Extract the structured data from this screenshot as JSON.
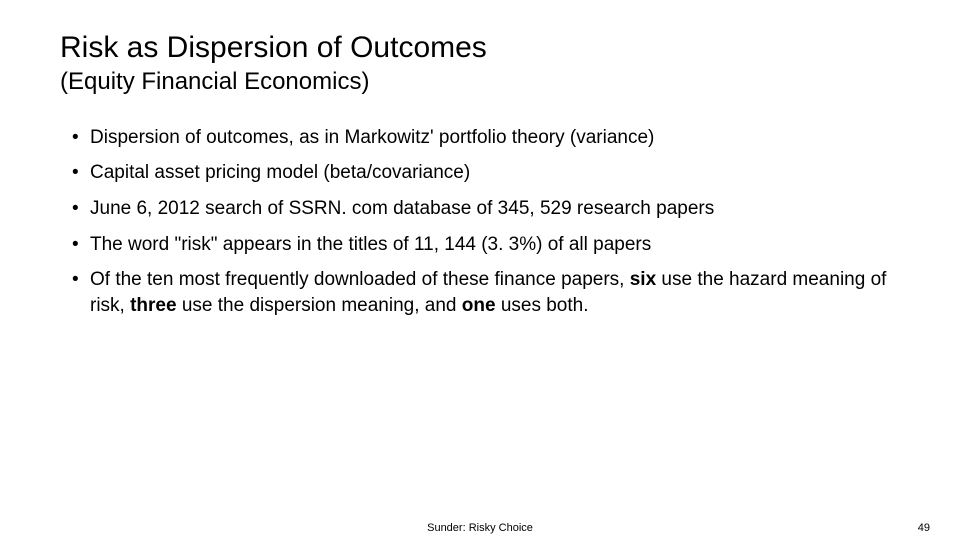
{
  "slide": {
    "title": "Risk as Dispersion of Outcomes",
    "subtitle": "(Equity Financial Economics)",
    "bullets": [
      {
        "html": "Dispersion of outcomes, as in Markowitz' portfolio theory (variance)"
      },
      {
        "html": "Capital asset pricing model (beta/covariance)"
      },
      {
        "html": "June  6, 2012 search of  SSRN. com database of  345, 529 research papers"
      },
      {
        "html": "The word  \"risk\"  appears  in the titles of  11, 144 (3. 3%) of all papers"
      },
      {
        "html": "Of the ten most frequently  downloaded of these finance papers,  <span class=\"bold\">six</span> use the hazard meaning of risk, <span class=\"bold\">three</span> use the dispersion meaning, and <span class=\"bold\">one</span> uses both."
      }
    ],
    "footer_center": "Sunder: Risky Choice",
    "footer_page": "49",
    "styling": {
      "background_color": "#ffffff",
      "text_color": "#000000",
      "title_fontsize": 30,
      "subtitle_fontsize": 24,
      "bullet_fontsize": 19,
      "footer_fontsize": 11,
      "font_family": "Arial"
    }
  }
}
